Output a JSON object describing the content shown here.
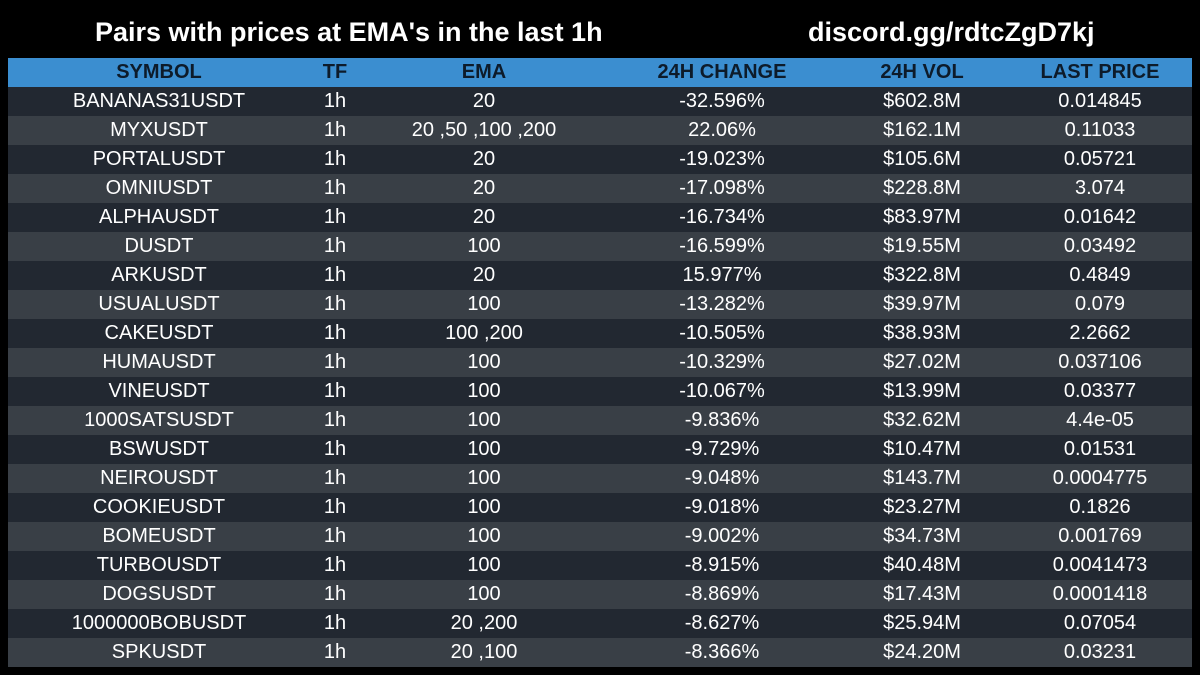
{
  "header": {
    "title": "Pairs with prices at EMA's in the last 1h",
    "invite": "discord.gg/rdtcZgD7kj"
  },
  "table": {
    "columns": [
      "SYMBOL",
      "TF",
      "EMA",
      "24H CHANGE",
      "24H VOL",
      "LAST PRICE"
    ],
    "rows": [
      [
        "BANANAS31USDT",
        "1h",
        "20",
        "-32.596%",
        "$602.8M",
        "0.014845"
      ],
      [
        "MYXUSDT",
        "1h",
        "20 ,50 ,100 ,200",
        "22.06%",
        "$162.1M",
        "0.11033"
      ],
      [
        "PORTALUSDT",
        "1h",
        "20",
        "-19.023%",
        "$105.6M",
        "0.05721"
      ],
      [
        "OMNIUSDT",
        "1h",
        "20",
        "-17.098%",
        "$228.8M",
        "3.074"
      ],
      [
        "ALPHAUSDT",
        "1h",
        "20",
        "-16.734%",
        "$83.97M",
        "0.01642"
      ],
      [
        "DUSDT",
        "1h",
        "100",
        "-16.599%",
        "$19.55M",
        "0.03492"
      ],
      [
        "ARKUSDT",
        "1h",
        "20",
        "15.977%",
        "$322.8M",
        "0.4849"
      ],
      [
        "USUALUSDT",
        "1h",
        "100",
        "-13.282%",
        "$39.97M",
        "0.079"
      ],
      [
        "CAKEUSDT",
        "1h",
        "100 ,200",
        "-10.505%",
        "$38.93M",
        "2.2662"
      ],
      [
        "HUMAUSDT",
        "1h",
        "100",
        "-10.329%",
        "$27.02M",
        "0.037106"
      ],
      [
        "VINEUSDT",
        "1h",
        "100",
        "-10.067%",
        "$13.99M",
        "0.03377"
      ],
      [
        "1000SATSUSDT",
        "1h",
        "100",
        "-9.836%",
        "$32.62M",
        "4.4e-05"
      ],
      [
        "BSWUSDT",
        "1h",
        "100",
        "-9.729%",
        "$10.47M",
        "0.01531"
      ],
      [
        "NEIROUSDT",
        "1h",
        "100",
        "-9.048%",
        "$143.7M",
        "0.0004775"
      ],
      [
        "COOKIEUSDT",
        "1h",
        "100",
        "-9.018%",
        "$23.27M",
        "0.1826"
      ],
      [
        "BOMEUSDT",
        "1h",
        "100",
        "-9.002%",
        "$34.73M",
        "0.001769"
      ],
      [
        "TURBOUSDT",
        "1h",
        "100",
        "-8.915%",
        "$40.48M",
        "0.0041473"
      ],
      [
        "DOGSUSDT",
        "1h",
        "100",
        "-8.869%",
        "$17.43M",
        "0.0001418"
      ],
      [
        "1000000BOBUSDT",
        "1h",
        "20 ,200",
        "-8.627%",
        "$25.94M",
        "0.07054"
      ],
      [
        "SPKUSDT",
        "1h",
        "20 ,100",
        "-8.366%",
        "$24.20M",
        "0.03231"
      ]
    ]
  },
  "colors": {
    "background": "#000000",
    "header_band": "#3b8ed0",
    "header_text": "#0d1b2a",
    "row_dark": "#222831",
    "row_light": "#393f46",
    "text": "#ffffff"
  }
}
